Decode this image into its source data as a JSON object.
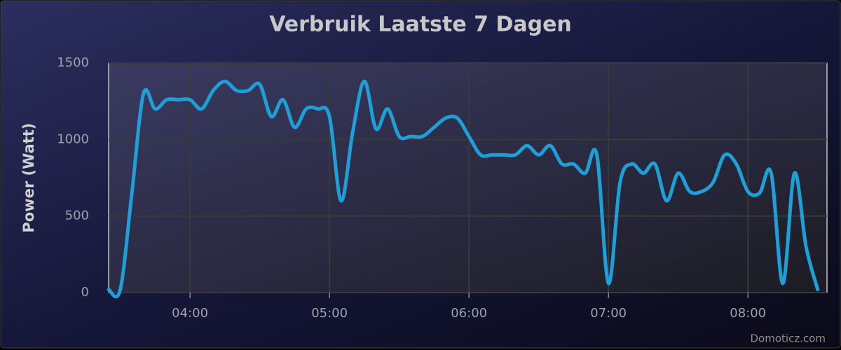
{
  "chart_data": {
    "type": "line",
    "title": "Verbruik Laatste 7 Dagen",
    "y_label": "Power (Watt)",
    "credits": "Domoticz.com",
    "x": [
      "03:25",
      "03:30",
      "03:35",
      "03:40",
      "03:45",
      "03:50",
      "03:55",
      "04:00",
      "04:05",
      "04:10",
      "04:15",
      "04:20",
      "04:25",
      "04:30",
      "04:35",
      "04:40",
      "04:45",
      "04:50",
      "04:55",
      "05:00",
      "05:05",
      "05:10",
      "05:15",
      "05:20",
      "05:25",
      "05:30",
      "05:35",
      "05:40",
      "05:45",
      "05:50",
      "05:55",
      "06:00",
      "06:05",
      "06:10",
      "06:15",
      "06:20",
      "06:25",
      "06:30",
      "06:35",
      "06:40",
      "06:45",
      "06:50",
      "06:55",
      "07:00",
      "07:05",
      "07:10",
      "07:15",
      "07:20",
      "07:25",
      "07:30",
      "07:35",
      "07:40",
      "07:45",
      "07:50",
      "07:55",
      "08:00",
      "08:05",
      "08:10",
      "08:15",
      "08:20",
      "08:25",
      "08:30"
    ],
    "series": [
      {
        "name": "Power",
        "color": "#1e9fd8",
        "values": [
          20,
          20,
          650,
          1300,
          1200,
          1260,
          1260,
          1260,
          1200,
          1320,
          1380,
          1320,
          1320,
          1360,
          1150,
          1260,
          1080,
          1200,
          1200,
          1150,
          600,
          1050,
          1380,
          1070,
          1200,
          1020,
          1020,
          1020,
          1080,
          1140,
          1140,
          1020,
          900,
          900,
          900,
          900,
          960,
          900,
          960,
          840,
          840,
          780,
          900,
          60,
          720,
          840,
          780,
          840,
          600,
          780,
          660,
          660,
          720,
          900,
          840,
          660,
          650,
          780,
          60,
          780,
          300,
          20
        ]
      }
    ],
    "xlim": [
      "03:25",
      "08:34"
    ],
    "xticks": [
      "04:00",
      "05:00",
      "06:00",
      "07:00",
      "08:00"
    ],
    "ylim": [
      0,
      1500
    ],
    "yticks": [
      0,
      500,
      1000,
      1500
    ],
    "grid": true
  }
}
